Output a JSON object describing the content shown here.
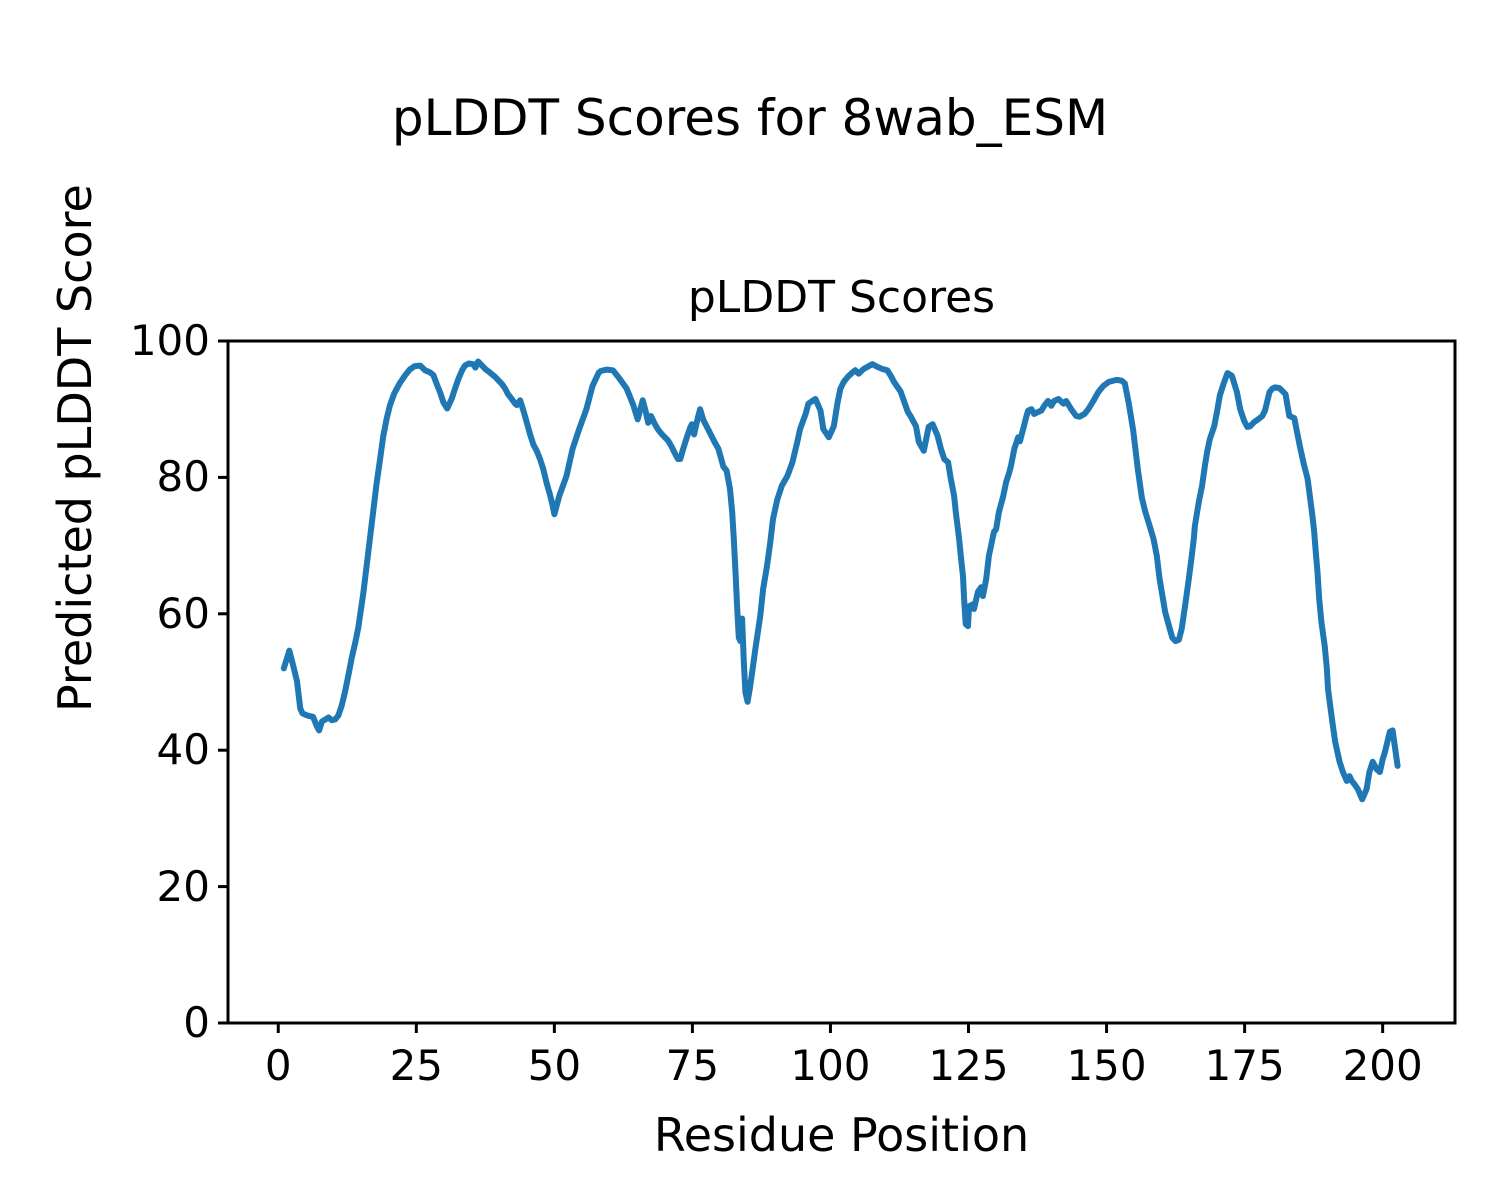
{
  "figure": {
    "suptitle": "pLDDT Scores for 8wab_ESM",
    "axes_title": "pLDDT Scores",
    "xlabel": "Residue Position",
    "ylabel": "Predicted pLDDT Score",
    "background_color": "#ffffff",
    "line_color": "#1f77b4",
    "axis_color": "#000000"
  },
  "chart_data": {
    "type": "line",
    "title": "pLDDT Scores",
    "suptitle": "pLDDT Scores for 8wab_ESM",
    "xlabel": "Residue Position",
    "ylabel": "Predicted pLDDT Score",
    "xlim": [
      -9.1,
      213.1
    ],
    "ylim": [
      0,
      100
    ],
    "x_ticks": [
      0,
      25,
      50,
      75,
      100,
      125,
      150,
      175,
      200
    ],
    "y_ticks": [
      0,
      20,
      40,
      60,
      80,
      100
    ],
    "grid": false,
    "legend_position": "none",
    "series": [
      {
        "name": "pLDDT",
        "color": "#1f77b4",
        "points": [
          [
            1,
            52.0
          ],
          [
            2,
            54.6
          ],
          [
            2.7,
            52.4
          ],
          [
            3.4,
            50.1
          ],
          [
            4,
            46.1
          ],
          [
            4.4,
            45.4
          ],
          [
            5.2,
            45.1
          ],
          [
            6.3,
            44.9
          ],
          [
            7,
            43.5
          ],
          [
            7.4,
            42.9
          ],
          [
            7.9,
            44.2
          ],
          [
            9.1,
            44.8
          ],
          [
            9.7,
            44.4
          ],
          [
            10.3,
            44.5
          ],
          [
            10.9,
            45.1
          ],
          [
            11.5,
            46.6
          ],
          [
            12.1,
            48.6
          ],
          [
            12.7,
            51.0
          ],
          [
            13.3,
            53.5
          ],
          [
            14,
            56.0
          ],
          [
            14.5,
            58.0
          ],
          [
            15.4,
            63.0
          ],
          [
            16,
            67.0
          ],
          [
            16.6,
            71.0
          ],
          [
            17.2,
            75.0
          ],
          [
            17.8,
            79.0
          ],
          [
            18.4,
            82.5
          ],
          [
            19,
            86.0
          ],
          [
            19.6,
            88.5
          ],
          [
            20.2,
            90.5
          ],
          [
            21,
            92.3
          ],
          [
            22,
            93.8
          ],
          [
            23,
            95.0
          ],
          [
            23.8,
            95.8
          ],
          [
            24.7,
            96.3
          ],
          [
            25.7,
            96.4
          ],
          [
            26.6,
            95.7
          ],
          [
            27.5,
            95.4
          ],
          [
            28.1,
            95.0
          ],
          [
            28.7,
            93.7
          ],
          [
            29.3,
            92.5
          ],
          [
            29.9,
            91.0
          ],
          [
            30.6,
            90.1
          ],
          [
            31.4,
            91.5
          ],
          [
            32,
            93.0
          ],
          [
            32.6,
            94.4
          ],
          [
            33.3,
            95.7
          ],
          [
            33.8,
            96.4
          ],
          [
            34.5,
            96.7
          ],
          [
            35.3,
            96.6
          ],
          [
            35.7,
            96.1
          ],
          [
            36.2,
            97.0
          ],
          [
            36.9,
            96.4
          ],
          [
            37.5,
            95.9
          ],
          [
            38.3,
            95.4
          ],
          [
            39.3,
            94.7
          ],
          [
            40.5,
            93.7
          ],
          [
            41.1,
            93.0
          ],
          [
            41.6,
            92.2
          ],
          [
            42.3,
            91.5
          ],
          [
            42.9,
            90.8
          ],
          [
            43.2,
            90.6
          ],
          [
            43.8,
            91.3
          ],
          [
            44.4,
            89.8
          ],
          [
            45,
            88.1
          ],
          [
            45.6,
            86.3
          ],
          [
            46.2,
            84.8
          ],
          [
            46.8,
            83.9
          ],
          [
            47.4,
            82.7
          ],
          [
            48,
            81.2
          ],
          [
            48.6,
            79.2
          ],
          [
            49.2,
            77.5
          ],
          [
            49.6,
            76.2
          ],
          [
            50,
            74.6
          ],
          [
            50.9,
            77.3
          ],
          [
            52.2,
            80.2
          ],
          [
            53.3,
            84.2
          ],
          [
            54.5,
            87.1
          ],
          [
            55.8,
            90.0
          ],
          [
            56.9,
            93.4
          ],
          [
            58,
            95.3
          ],
          [
            58.4,
            95.6
          ],
          [
            59.5,
            95.8
          ],
          [
            60.6,
            95.7
          ],
          [
            61.6,
            94.7
          ],
          [
            62.5,
            93.7
          ],
          [
            63.1,
            93.0
          ],
          [
            63.7,
            91.8
          ],
          [
            64.3,
            90.6
          ],
          [
            65.1,
            88.5
          ],
          [
            66,
            91.3
          ],
          [
            66.5,
            89.8
          ],
          [
            67,
            88.0
          ],
          [
            67.5,
            89.0
          ],
          [
            68.2,
            87.8
          ],
          [
            68.8,
            87.0
          ],
          [
            69.5,
            86.3
          ],
          [
            70,
            85.9
          ],
          [
            70.6,
            85.4
          ],
          [
            71.3,
            84.4
          ],
          [
            71.9,
            83.4
          ],
          [
            72.4,
            82.7
          ],
          [
            72.8,
            82.7
          ],
          [
            73.3,
            84.1
          ],
          [
            74,
            85.9
          ],
          [
            74.6,
            87.3
          ],
          [
            74.9,
            87.8
          ],
          [
            75.3,
            86.3
          ],
          [
            76,
            88.8
          ],
          [
            76.4,
            90.0
          ],
          [
            77,
            88.4
          ],
          [
            78,
            86.8
          ],
          [
            79,
            85.2
          ],
          [
            79.7,
            84.2
          ],
          [
            80.6,
            81.6
          ],
          [
            81.2,
            81.0
          ],
          [
            81.8,
            78.3
          ],
          [
            82.2,
            74.9
          ],
          [
            82.5,
            71.0
          ],
          [
            82.8,
            66.1
          ],
          [
            83.1,
            61.1
          ],
          [
            83.4,
            56.5
          ],
          [
            83.7,
            56.0
          ],
          [
            84,
            59.3
          ],
          [
            84.3,
            53.0
          ],
          [
            84.6,
            48.5
          ],
          [
            85,
            47.1
          ],
          [
            85.4,
            49.0
          ],
          [
            86,
            52.4
          ],
          [
            86.4,
            54.9
          ],
          [
            87.3,
            59.7
          ],
          [
            87.8,
            63.6
          ],
          [
            88.5,
            67.0
          ],
          [
            89.1,
            70.5
          ],
          [
            89.6,
            73.9
          ],
          [
            90.4,
            76.8
          ],
          [
            91.2,
            78.8
          ],
          [
            92.2,
            80.2
          ],
          [
            93.1,
            82.2
          ],
          [
            94,
            85.2
          ],
          [
            94.5,
            87.1
          ],
          [
            95.5,
            89.3
          ],
          [
            96,
            90.8
          ],
          [
            96.7,
            91.2
          ],
          [
            97.3,
            91.5
          ],
          [
            98.2,
            89.8
          ],
          [
            98.7,
            87.1
          ],
          [
            99.7,
            85.9
          ],
          [
            100.6,
            87.5
          ],
          [
            101.3,
            91.0
          ],
          [
            101.8,
            93.0
          ],
          [
            102.4,
            94.0
          ],
          [
            103.1,
            94.7
          ],
          [
            104,
            95.4
          ],
          [
            104.5,
            95.7
          ],
          [
            105.1,
            95.2
          ],
          [
            106,
            95.9
          ],
          [
            106.9,
            96.3
          ],
          [
            107.6,
            96.6
          ],
          [
            108.5,
            96.2
          ],
          [
            109.4,
            95.9
          ],
          [
            110.3,
            95.7
          ],
          [
            111,
            94.8
          ],
          [
            111.5,
            94.0
          ],
          [
            112.7,
            92.6
          ],
          [
            114,
            89.6
          ],
          [
            114.5,
            89.0
          ],
          [
            115.5,
            87.5
          ],
          [
            116,
            85.2
          ],
          [
            116.9,
            83.9
          ],
          [
            117.8,
            87.4
          ],
          [
            118.5,
            87.8
          ],
          [
            119.4,
            86.1
          ],
          [
            120,
            84.2
          ],
          [
            120.6,
            82.7
          ],
          [
            121.3,
            82.2
          ],
          [
            121.8,
            79.8
          ],
          [
            122.4,
            77.3
          ],
          [
            122.7,
            74.9
          ],
          [
            123.3,
            71.0
          ],
          [
            123.6,
            68.5
          ],
          [
            124,
            65.5
          ],
          [
            124.2,
            62.2
          ],
          [
            124.5,
            58.5
          ],
          [
            124.9,
            58.2
          ],
          [
            125.1,
            61.1
          ],
          [
            125.8,
            61.4
          ],
          [
            126,
            60.7
          ],
          [
            126.7,
            63.2
          ],
          [
            127.3,
            63.9
          ],
          [
            127.6,
            62.6
          ],
          [
            128.2,
            65.1
          ],
          [
            128.7,
            68.5
          ],
          [
            129.1,
            70.0
          ],
          [
            129.6,
            72.0
          ],
          [
            130,
            72.4
          ],
          [
            130.5,
            74.9
          ],
          [
            131.3,
            77.3
          ],
          [
            131.8,
            79.3
          ],
          [
            132.4,
            80.8
          ],
          [
            132.7,
            81.7
          ],
          [
            133.3,
            84.2
          ],
          [
            134,
            85.9
          ],
          [
            134.3,
            85.3
          ],
          [
            134.9,
            87.1
          ],
          [
            135.5,
            89.0
          ],
          [
            135.8,
            89.8
          ],
          [
            136.4,
            90.0
          ],
          [
            136.9,
            89.3
          ],
          [
            137.6,
            89.6
          ],
          [
            138.2,
            89.8
          ],
          [
            138.7,
            90.5
          ],
          [
            139.4,
            91.2
          ],
          [
            140,
            90.5
          ],
          [
            140.5,
            91.2
          ],
          [
            141.3,
            91.5
          ],
          [
            142.2,
            90.8
          ],
          [
            142.7,
            91.2
          ],
          [
            143.6,
            90.0
          ],
          [
            144.5,
            89.0
          ],
          [
            145.1,
            88.9
          ],
          [
            146,
            89.3
          ],
          [
            146.7,
            90.0
          ],
          [
            147.6,
            91.2
          ],
          [
            148.5,
            92.5
          ],
          [
            149.4,
            93.4
          ],
          [
            150.4,
            94.0
          ],
          [
            151.3,
            94.2
          ],
          [
            151.8,
            94.3
          ],
          [
            152.7,
            94.2
          ],
          [
            153.3,
            93.8
          ],
          [
            154,
            91.0
          ],
          [
            154.8,
            87.0
          ],
          [
            155.7,
            81.0
          ],
          [
            156.4,
            77.0
          ],
          [
            157,
            75.0
          ],
          [
            157.8,
            72.9
          ],
          [
            158.5,
            71.0
          ],
          [
            159.1,
            68.5
          ],
          [
            159.6,
            65.1
          ],
          [
            160,
            63.2
          ],
          [
            160.6,
            60.3
          ],
          [
            161.3,
            58.2
          ],
          [
            161.9,
            56.5
          ],
          [
            162.5,
            56.0
          ],
          [
            163.1,
            56.2
          ],
          [
            163.6,
            57.8
          ],
          [
            164.2,
            61.1
          ],
          [
            164.9,
            65.1
          ],
          [
            165.5,
            69.0
          ],
          [
            165.8,
            71.0
          ],
          [
            166,
            72.9
          ],
          [
            166.7,
            76.4
          ],
          [
            167.3,
            78.8
          ],
          [
            167.8,
            81.7
          ],
          [
            168.2,
            83.7
          ],
          [
            168.7,
            85.6
          ],
          [
            169.5,
            87.5
          ],
          [
            170,
            89.6
          ],
          [
            170.5,
            92.0
          ],
          [
            171.3,
            94.0
          ],
          [
            171.9,
            95.3
          ],
          [
            172.7,
            94.9
          ],
          [
            173.6,
            92.5
          ],
          [
            174.2,
            90.0
          ],
          [
            174.9,
            88.3
          ],
          [
            175.5,
            87.4
          ],
          [
            176,
            87.5
          ],
          [
            176.7,
            88.1
          ],
          [
            177.6,
            88.6
          ],
          [
            178.2,
            89.0
          ],
          [
            178.7,
            89.8
          ],
          [
            179.5,
            92.5
          ],
          [
            180,
            93.0
          ],
          [
            180.5,
            93.2
          ],
          [
            181.3,
            93.1
          ],
          [
            181.8,
            92.7
          ],
          [
            182.4,
            92.2
          ],
          [
            183.1,
            89.0
          ],
          [
            184,
            88.7
          ],
          [
            184.5,
            86.6
          ],
          [
            185.1,
            84.2
          ],
          [
            185.8,
            81.7
          ],
          [
            186.4,
            79.8
          ],
          [
            187.3,
            74.3
          ],
          [
            187.6,
            72.0
          ],
          [
            187.9,
            69.0
          ],
          [
            188.2,
            66.1
          ],
          [
            188.5,
            62.2
          ],
          [
            188.9,
            58.8
          ],
          [
            189.5,
            55.3
          ],
          [
            189.9,
            51.9
          ],
          [
            190.1,
            49.0
          ],
          [
            190.5,
            46.5
          ],
          [
            190.9,
            44.1
          ],
          [
            191.4,
            41.2
          ],
          [
            192.2,
            38.3
          ],
          [
            192.8,
            36.8
          ],
          [
            193.5,
            35.5
          ],
          [
            194,
            36.2
          ],
          [
            194.4,
            35.5
          ],
          [
            194.9,
            35.0
          ],
          [
            195.5,
            34.3
          ],
          [
            196.3,
            32.8
          ],
          [
            197.1,
            34.3
          ],
          [
            197.6,
            36.8
          ],
          [
            198.2,
            38.3
          ],
          [
            198.9,
            37.2
          ],
          [
            199.5,
            36.8
          ],
          [
            200,
            38.7
          ],
          [
            200.4,
            39.7
          ],
          [
            201.3,
            42.7
          ],
          [
            201.8,
            42.9
          ],
          [
            202.2,
            40.6
          ],
          [
            202.7,
            37.7
          ]
        ]
      }
    ]
  }
}
